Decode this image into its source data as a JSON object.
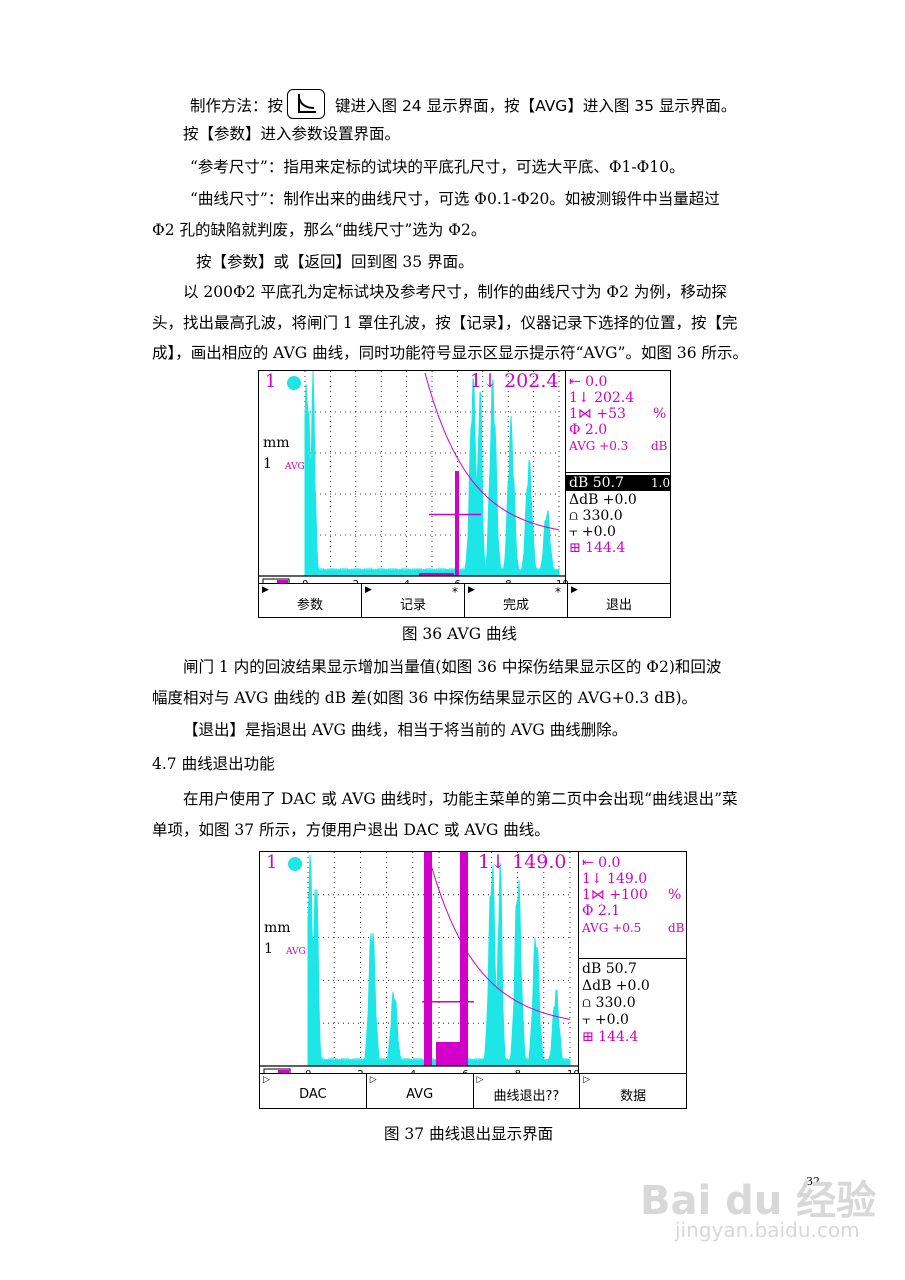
{
  "paragraphs": {
    "p1_a": "制作方法：按",
    "p1_b": "键进入图 24 显示界面，按【AVG】进入图 35 显示界面。",
    "p2": "按【参数】进入参数设置界面。",
    "p3": "“参考尺寸”：指用来定标的试块的平底孔尺寸，可选大平底、Φ1-Φ10。",
    "p4": "“曲线尺寸”：制作出来的曲线尺寸，可选 Φ0.1-Φ20。如被测锻件中当量超过",
    "p5": "Φ2 孔的缺陷就判废，那么“曲线尺寸”选为 Φ2。",
    "p6": "按【参数】或【返回】回到图 35 界面。",
    "p7": "以 200Φ2 平底孔为定标试块及参考尺寸，制作的曲线尺寸为 Φ2 为例，移动探",
    "p8": "头，找出最高孔波，将闸门 1 罩住孔波，按【记录】，仪器记录下选择的位置，按【完",
    "p9": "成】，画出相应的 AVG 曲线，同时功能符号显示区显示提示符“AVG”。如图 36 所示。",
    "p10": "闸门 1 内的回波结果显示增加当量值(如图 36 中探伤结果显示区的 Φ2)和回波",
    "p11": "幅度相对与 AVG 曲线的 dB 差(如图 36 中探伤结果显示区的 AVG+0.3 dB)。",
    "p12": "【退出】是指退出 AVG 曲线，相当于将当前的 AVG 曲线删除。",
    "section": "4.7   曲线退出功能",
    "p13": "在用户使用了 DAC 或 AVG 曲线时，功能主菜单的第二页中会出现“曲线退出”菜",
    "p14": "单项，如图 37 所示，方便用户退出 DAC 或 AVG 曲线。"
  },
  "fig36": {
    "caption": "图 36 AVG 曲线",
    "channel": "1",
    "unit": "mm",
    "mode_num": "1",
    "mode_tag": "AVG",
    "gate_reading": "202.4",
    "x_ticks": [
      "0",
      "2",
      "4",
      "6",
      "8",
      "10"
    ],
    "readouts_top": [
      {
        "label": "⇤ 0.0",
        "unit": ""
      },
      {
        "label": "1↓ 202.4",
        "unit": ""
      },
      {
        "label": "1⋈ +53",
        "unit": "%"
      },
      {
        "label": "Φ 2.0",
        "unit": ""
      },
      {
        "label": "AVG +0.3",
        "unit": "dB"
      }
    ],
    "readouts_bottom": [
      {
        "label": "dB 50.7",
        "extra": "1.0"
      },
      {
        "label": "ΔdB +0.0"
      },
      {
        "label": "⩍ 330.0"
      },
      {
        "label": "⫟ +0.0"
      },
      {
        "label": "⊞ 144.4"
      }
    ],
    "menu": [
      {
        "label": "参数",
        "star": ""
      },
      {
        "label": "记录",
        "star": "*"
      },
      {
        "label": "完成",
        "star": "*"
      },
      {
        "label": "退出",
        "star": ""
      }
    ]
  },
  "fig37": {
    "caption": "图  37  曲线退出显示界面",
    "channel": "1",
    "unit": "mm",
    "mode_num": "1",
    "mode_tag": "AVG",
    "gate_reading": "149.0",
    "x_ticks": [
      "0",
      "2",
      "4",
      "6",
      "8",
      "10"
    ],
    "readouts_top": [
      {
        "label": "⇤ 0.0",
        "unit": ""
      },
      {
        "label": "1↓ 149.0",
        "unit": ""
      },
      {
        "label": "1⋈ +100",
        "unit": "%"
      },
      {
        "label": "Φ 2.1",
        "unit": ""
      },
      {
        "label": "AVG +0.5",
        "unit": "dB"
      }
    ],
    "readouts_bottom": [
      {
        "label": "dB 50.7"
      },
      {
        "label": "ΔdB +0.0"
      },
      {
        "label": "⩍ 330.0"
      },
      {
        "label": "⫟ +0.0"
      },
      {
        "label": "⊞ 144.4"
      }
    ],
    "menu": [
      {
        "label": "DAC"
      },
      {
        "label": "AVG"
      },
      {
        "label": "曲线退出??"
      },
      {
        "label": "数据"
      }
    ]
  },
  "page_number": "32",
  "watermark": {
    "brand": "Bai du 经验",
    "url": "jingyan.baidu.com"
  },
  "colors": {
    "cyan": "#1ee6e6",
    "magenta": "#d200c8"
  }
}
